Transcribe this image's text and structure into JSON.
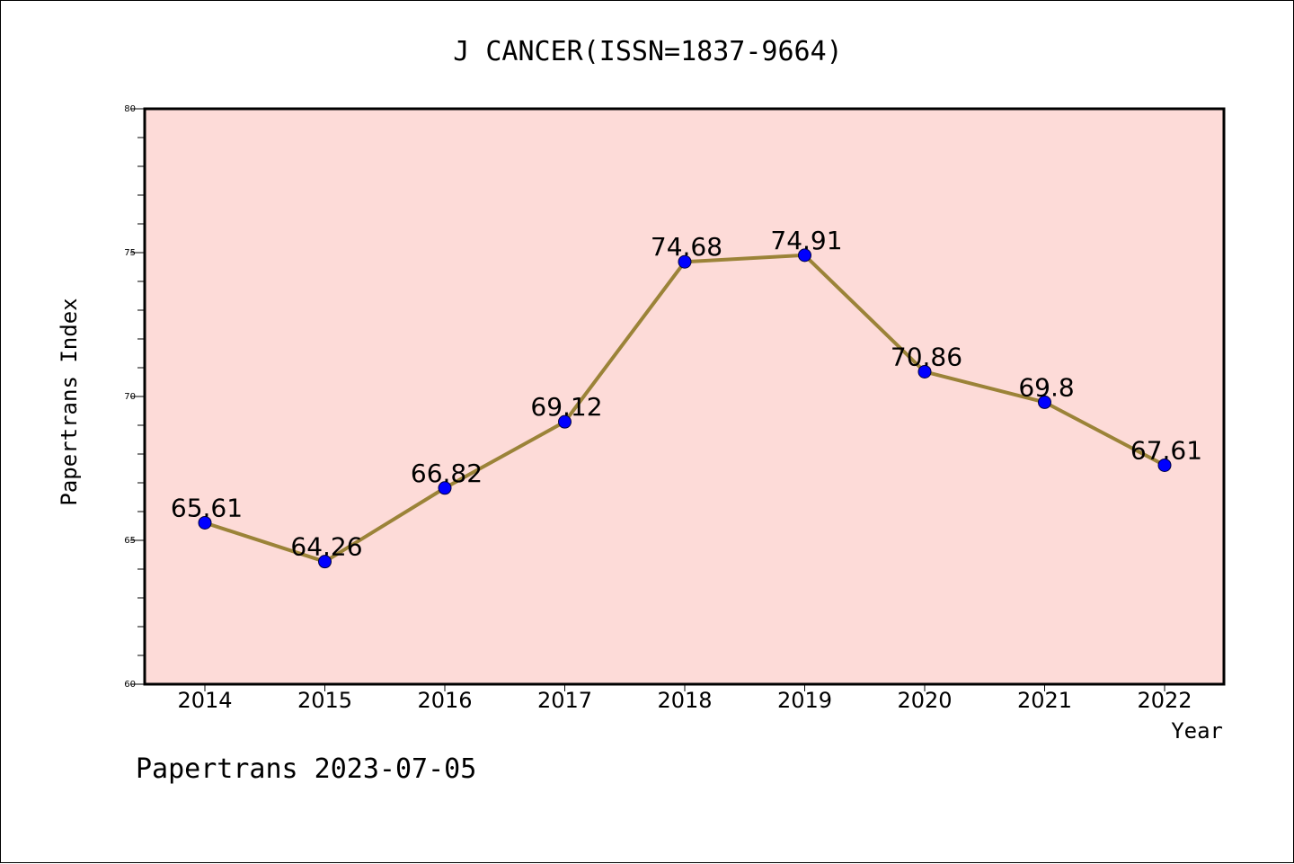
{
  "chart_data": {
    "type": "line",
    "title": "J CANCER(ISSN=1837-9664)",
    "xlabel": "Year",
    "ylabel": "Papertrans Index",
    "categories": [
      "2014",
      "2015",
      "2016",
      "2017",
      "2018",
      "2019",
      "2020",
      "2021",
      "2022"
    ],
    "values": [
      65.61,
      64.26,
      66.82,
      69.12,
      74.68,
      74.91,
      70.86,
      69.8,
      67.61
    ],
    "data_labels": [
      "65.61",
      "64.26",
      "66.82",
      "69.12",
      "74.68",
      "74.91",
      "70.86",
      "69.8",
      "67.61"
    ],
    "ylim": [
      60,
      80
    ],
    "y_ticks": [
      "60",
      "65",
      "70",
      "75",
      "80"
    ],
    "grid": false,
    "line_color": "#9b8338",
    "marker_color": "#0000ff",
    "plot_background": "#fddbd8"
  },
  "footer": "Papertrans 2023-07-05"
}
